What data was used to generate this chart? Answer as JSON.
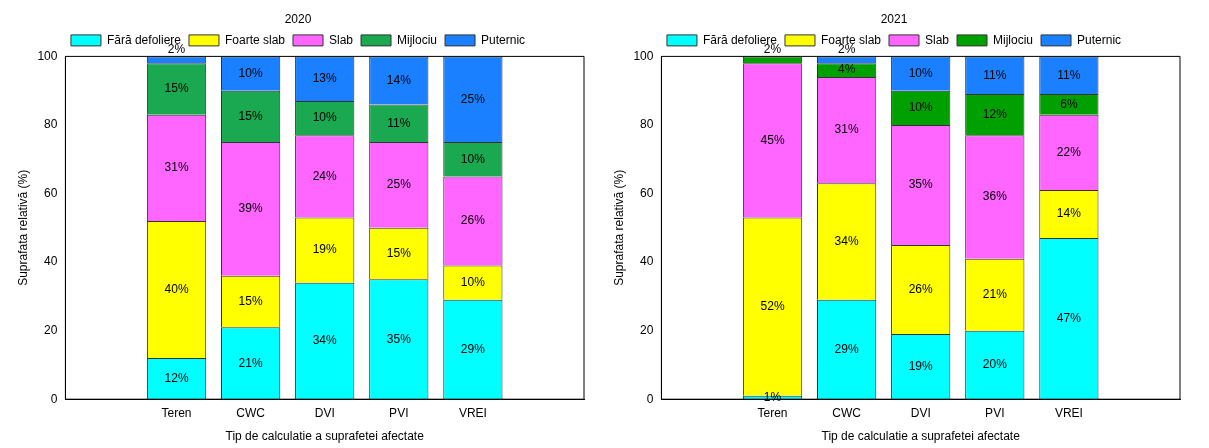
{
  "chart_data": [
    {
      "type": "bar",
      "title": "2020",
      "xlabel": "Tip de calculatie a suprafetei afectate",
      "ylabel": "Suprafata relativă (%)",
      "categories": [
        null,
        "Teren",
        "CWC",
        "DVI",
        "PVI",
        "VREI",
        null
      ],
      "stacked": true,
      "ylim": [
        0,
        100
      ],
      "yticks": [
        0,
        20,
        40,
        60,
        80,
        100
      ],
      "grid": false,
      "legend": "top",
      "series": [
        {
          "name": "Fără defoliere",
          "color": "#00ffff",
          "values": [
            null,
            12,
            21,
            34,
            35,
            29,
            null
          ],
          "value_labels": [
            null,
            "12%",
            "21%",
            "34%",
            "35%",
            "29%",
            null
          ]
        },
        {
          "name": "Foarte slab",
          "color": "#ffff00",
          "values": [
            null,
            40,
            15,
            19,
            15,
            10,
            null
          ],
          "value_labels": [
            null,
            "40%",
            "15%",
            "19%",
            "15%",
            "10%",
            null
          ]
        },
        {
          "name": "Slab",
          "color": "#ff66ff",
          "values": [
            null,
            31,
            39,
            24,
            25,
            26,
            null
          ],
          "value_labels": [
            null,
            "31%",
            "39%",
            "24%",
            "25%",
            "26%",
            null
          ]
        },
        {
          "name": "Mijlociu",
          "color": "#1aa850",
          "values": [
            null,
            15,
            15,
            10,
            11,
            10,
            null
          ],
          "value_labels": [
            null,
            "15%",
            "15%",
            "10%",
            "11%",
            "10%",
            null
          ]
        },
        {
          "name": "Puternic",
          "color": "#1a80ff",
          "values": [
            null,
            2,
            10,
            13,
            14,
            25,
            null
          ],
          "value_labels": [
            null,
            "2%",
            "10%",
            "13%",
            "14%",
            "25%",
            null
          ]
        }
      ]
    },
    {
      "type": "bar",
      "title": "2021",
      "xlabel": "Tip de calculatie a suprafetei afectate",
      "ylabel": "Suprafata relativă (%)",
      "categories": [
        null,
        "Teren",
        "CWC",
        "DVI",
        "PVI",
        "VREI",
        null
      ],
      "stacked": true,
      "ylim": [
        0,
        100
      ],
      "yticks": [
        0,
        20,
        40,
        60,
        80,
        100
      ],
      "grid": false,
      "legend": "top",
      "series": [
        {
          "name": "Fără defoliere",
          "color": "#00ffff",
          "values": [
            null,
            1,
            29,
            19,
            20,
            47,
            null
          ],
          "value_labels": [
            null,
            "1%",
            "29%",
            "19%",
            "20%",
            "47%",
            null
          ]
        },
        {
          "name": "Foarte slab",
          "color": "#ffff00",
          "values": [
            null,
            52,
            34,
            26,
            21,
            14,
            null
          ],
          "value_labels": [
            null,
            "52%",
            "34%",
            "26%",
            "21%",
            "14%",
            null
          ]
        },
        {
          "name": "Slab",
          "color": "#ff66ff",
          "values": [
            null,
            45,
            31,
            35,
            36,
            22,
            null
          ],
          "value_labels": [
            null,
            "45%",
            "31%",
            "35%",
            "36%",
            "22%",
            null
          ]
        },
        {
          "name": "Mijlociu",
          "color": "#00a000",
          "values": [
            null,
            2,
            4,
            10,
            12,
            6,
            null
          ],
          "value_labels": [
            null,
            "2%",
            "4%",
            "10%",
            "12%",
            "6%",
            null
          ]
        },
        {
          "name": "Puternic",
          "color": "#1a80ff",
          "values": [
            null,
            null,
            2,
            10,
            11,
            11,
            null
          ],
          "value_labels": [
            null,
            null,
            "2%",
            "10%",
            "11%",
            "11%",
            null
          ]
        }
      ]
    }
  ]
}
